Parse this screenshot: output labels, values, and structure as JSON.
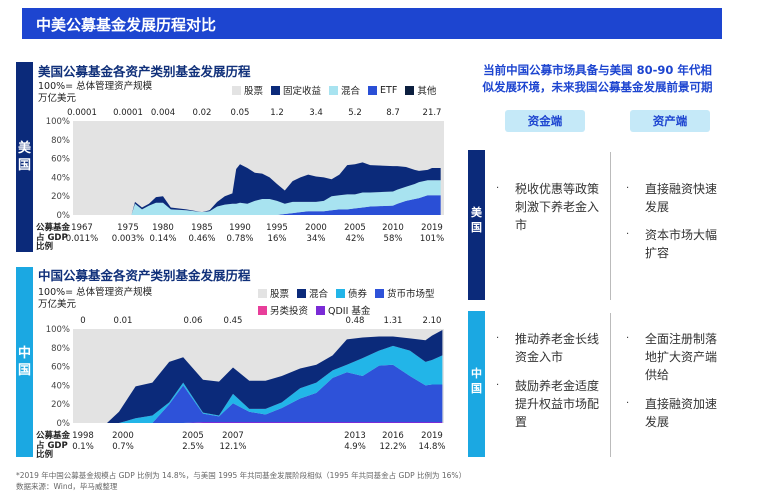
{
  "header": {
    "title": "中美公募基金发展历程对比"
  },
  "us_panel": {
    "side_label": "美国",
    "title": "美国公募基金各资产类别基金发展历程",
    "subtitle_1": "100%= 总体管理资产规模",
    "subtitle_2": "万亿美元",
    "gdp_label": [
      "公募基金",
      "占 GDP",
      "比例"
    ]
  },
  "cn_panel": {
    "side_label": "中国",
    "title": "中国公募基金各资产类别基金发展历程",
    "subtitle_1": "100%= 总体管理资产规模",
    "subtitle_2": "万亿美元",
    "gdp_label": [
      "公募基金",
      "占 GDP",
      "比例"
    ]
  },
  "right": {
    "title_1": "当前中国公募市场具备与美国 80-90 年代相",
    "title_2": "似发展环境，未来我国公募基金发展前景可期",
    "tab_funding": "资金端",
    "tab_asset": "资产端",
    "us": {
      "label": "美国",
      "funding": [
        "税收优惠等政策刺激下养老金入市"
      ],
      "asset": [
        "直接融资快速发展",
        "资本市场大幅扩容"
      ]
    },
    "cn": {
      "label": "中国",
      "funding": [
        "推动养老金长线资金入市",
        "鼓励养老金适度提升权益市场配置"
      ],
      "asset": [
        "全面注册制落地扩大资产端供给",
        "直接融资加速发展"
      ]
    }
  },
  "footer": {
    "note": "*2019 年中国公募基金规模占 GDP 比例为 14.8%，与美国 1995 年共同基金发展阶段相似（1995 年共同基金占 GDP 比例为 16%）",
    "source": "数据来源：Wind，毕马威整理"
  },
  "chart_data": [
    {
      "type": "area",
      "stacked": true,
      "title": "美国公募基金各资产类别基金发展历程",
      "ylim": [
        0,
        100
      ],
      "yticks": [
        "0%",
        "20%",
        "40%",
        "60%",
        "80%",
        "100%"
      ],
      "ticks": [
        1967,
        1975,
        1980,
        1985,
        1990,
        1995,
        2000,
        2005,
        2010,
        2019
      ],
      "aum": [
        "0.0001",
        "0.0001",
        "0.004",
        "0.02",
        "0.05",
        "1.2",
        "3.4",
        "5.2",
        "8.7",
        "21.7"
      ],
      "gdp": [
        "0.011%",
        "0.003%",
        "0.14%",
        "0.46%",
        "0.78%",
        "16%",
        "34%",
        "42%",
        "58%",
        "101%"
      ],
      "remainder": {
        "name": "股票",
        "color": "#e3e3e3"
      },
      "x": [
        1967,
        1975,
        1975.5,
        1976,
        1977,
        1978,
        1979,
        1980,
        1981,
        1983,
        1985,
        1986,
        1987,
        1988,
        1989,
        1989.5,
        1990,
        1991,
        1992,
        1993,
        1994,
        1995,
        1996,
        1997,
        1998,
        1999,
        2000,
        2001,
        2002,
        2003,
        2004,
        2005,
        2006,
        2007,
        2010,
        2011,
        2013,
        2015,
        2016,
        2018,
        2019,
        2021
      ],
      "series": [
        {
          "name": "ETF",
          "color": "#2a4fd6",
          "values": [
            0,
            0,
            0,
            0,
            0,
            0,
            0,
            0,
            0,
            0,
            0,
            0,
            0,
            0,
            0,
            0,
            0,
            0,
            0,
            0,
            0,
            0,
            1,
            2,
            3,
            4,
            4,
            4,
            5,
            6,
            6,
            7,
            8,
            9,
            10,
            12,
            15,
            17,
            18,
            21,
            21,
            21
          ]
        },
        {
          "name": "混合",
          "color": "#a8e3f0",
          "values": [
            0,
            0,
            0,
            12,
            6,
            10,
            13,
            13,
            6,
            5,
            3,
            4,
            9,
            11,
            12,
            12,
            13,
            12,
            15,
            17,
            17,
            15,
            11,
            12,
            11,
            10,
            10,
            11,
            15,
            15,
            16,
            15,
            16,
            15,
            15,
            15,
            15,
            16,
            17,
            16,
            16,
            16
          ]
        },
        {
          "name": "固定收益",
          "color": "#0b2a7a",
          "values": [
            0,
            0,
            0,
            2,
            2,
            2,
            6,
            7,
            2,
            1,
            0,
            1,
            5,
            9,
            11,
            37,
            41,
            38,
            30,
            27,
            23,
            18,
            14,
            22,
            26,
            29,
            27,
            25,
            18,
            22,
            31,
            32,
            32,
            29,
            27,
            25,
            21,
            15,
            12,
            11,
            13,
            13
          ]
        },
        {
          "name": "其他",
          "color": "#0c1f3f",
          "values": [
            0,
            0,
            0,
            0,
            0,
            0,
            0,
            0,
            0,
            0,
            0,
            0,
            0,
            0,
            0,
            0,
            0,
            0,
            0,
            0,
            0,
            0,
            0,
            0,
            0,
            0,
            0,
            0,
            0,
            0,
            0,
            0,
            0,
            0,
            0,
            0,
            0,
            0,
            0,
            0,
            0,
            0
          ]
        }
      ]
    },
    {
      "type": "area",
      "stacked": true,
      "title": "中国公募基金各资产类别基金发展历程",
      "ylim": [
        0,
        100
      ],
      "yticks": [
        "0%",
        "20%",
        "40%",
        "60%",
        "80%",
        "100%"
      ],
      "ticks": [
        1998,
        2000,
        2005,
        2007,
        2013,
        2016,
        2019
      ],
      "aum": [
        "0",
        "0.01",
        "0.06",
        "0.45",
        "0.48",
        "1.31",
        "2.10"
      ],
      "gdp": [
        "0.1%",
        "0.7%",
        "2.5%",
        "12.1%",
        "4.9%",
        "12.2%",
        "14.8%"
      ],
      "remainder": {
        "name": "股票",
        "color": "#e3e3e3"
      },
      "x": [
        1997.5,
        1999.2,
        1999.8,
        2000.9,
        2002.1,
        2003.3,
        2004.3,
        2005.5,
        2006.3,
        2007,
        2007.8,
        2008.6,
        2009.4,
        2010.3,
        2011.1,
        2011.9,
        2012.6,
        2013.6,
        2014.9,
        2016,
        2017.3,
        2018.5,
        2019,
        2019.8
      ],
      "series": [
        {
          "name": "另类投资",
          "color": "#e83e9a",
          "values": [
            0,
            0,
            0,
            0,
            0,
            0,
            0,
            0,
            0,
            0,
            0,
            0,
            0,
            0,
            0,
            0,
            0,
            0,
            0,
            0,
            0,
            0,
            0,
            0
          ]
        },
        {
          "name": "QDII 基金",
          "color": "#7a2bd6",
          "values": [
            0,
            0,
            0,
            0,
            0,
            0,
            0,
            1,
            1,
            1,
            1,
            1,
            1,
            1,
            1,
            1,
            1,
            1,
            1,
            1,
            1,
            1,
            1,
            1
          ]
        },
        {
          "name": "货币市场型",
          "color": "#2e52d9",
          "values": [
            0,
            0,
            0,
            0,
            0,
            20,
            40,
            9,
            6,
            20,
            11,
            8,
            15,
            25,
            31,
            47,
            53,
            49,
            60,
            61,
            49,
            39,
            40,
            40
          ]
        },
        {
          "name": "债券",
          "color": "#22b5e8",
          "values": [
            0,
            0,
            0,
            5,
            8,
            2,
            3,
            1,
            1,
            10,
            3,
            6,
            6,
            11,
            11,
            8,
            8,
            19,
            16,
            20,
            27,
            25,
            26,
            31
          ]
        },
        {
          "name": "混合",
          "color": "#0b2a7a",
          "values": [
            0,
            0,
            12,
            34,
            35,
            43,
            27,
            35,
            36,
            28,
            30,
            30,
            28,
            21,
            19,
            16,
            27,
            22,
            15,
            10,
            13,
            23,
            26,
            27
          ]
        }
      ]
    }
  ]
}
